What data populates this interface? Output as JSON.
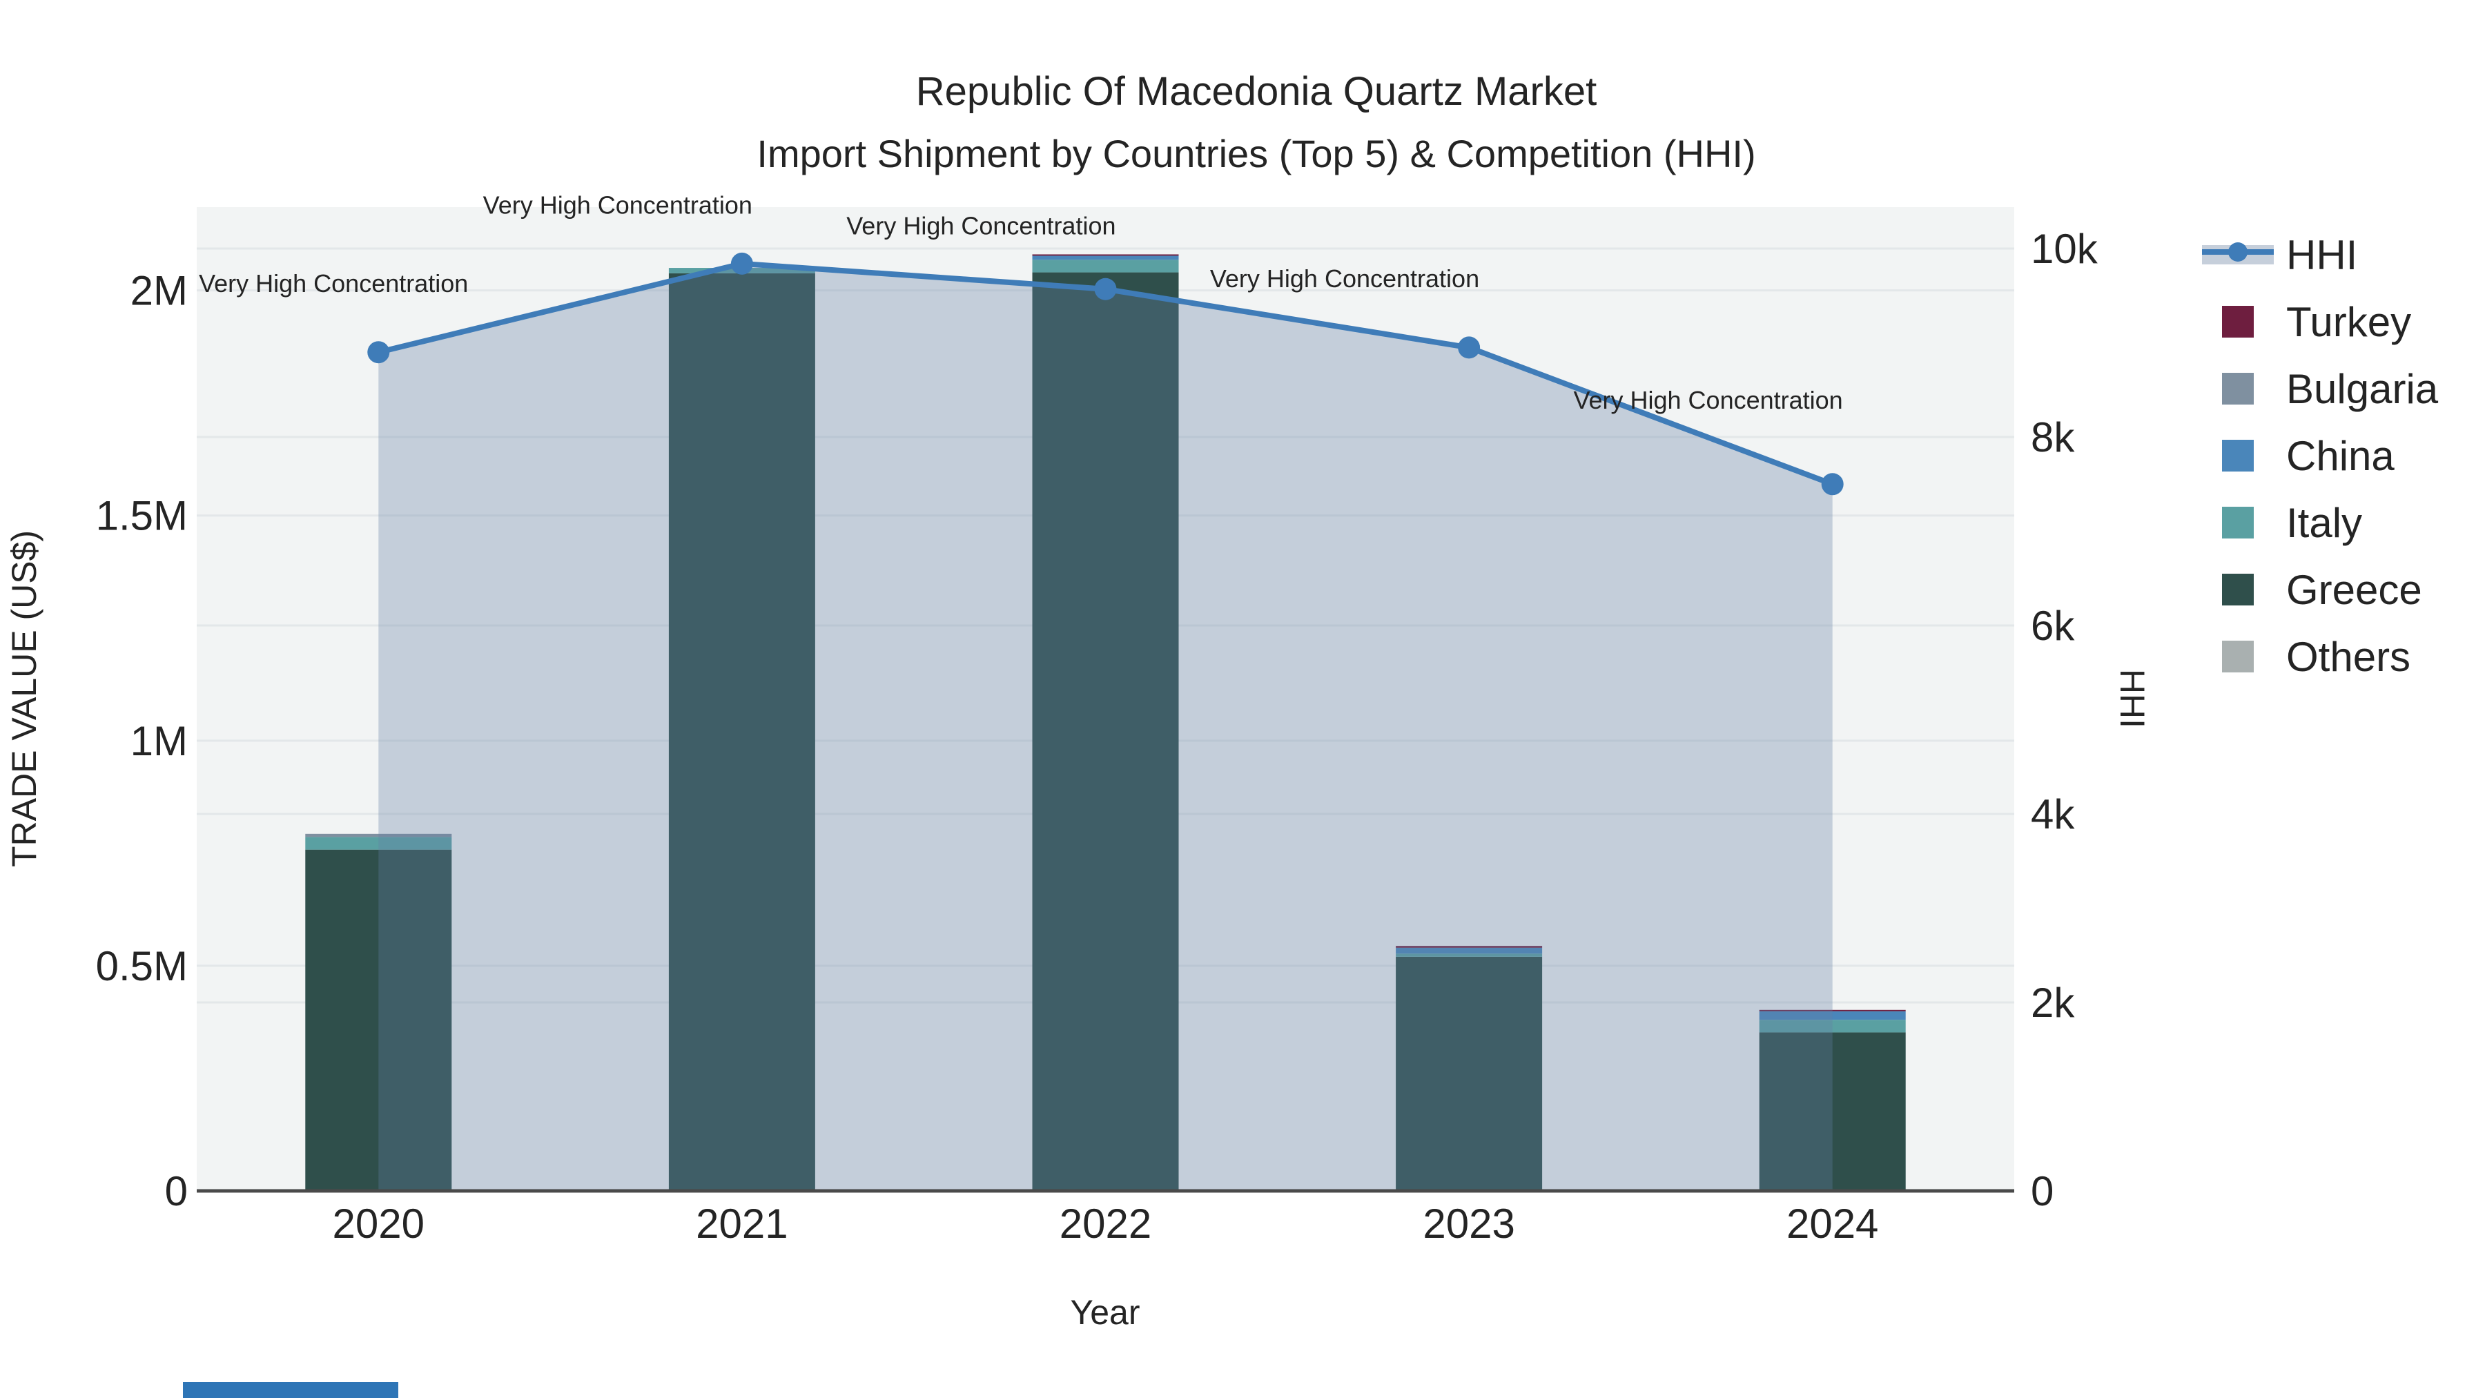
{
  "header": {
    "title": "Republic Of Macedonia Quartz Market",
    "subtitle": "Import Shipment by Countries (Top 5) & Competition (HHI)"
  },
  "colors": {
    "plot_background": "#f2f4f4",
    "gridline": "#e3e7e9",
    "axis_line": "#4a4a4a",
    "hhi_line": "#3f7cb8",
    "hhi_area_fill": "rgba(101,127,165,0.32)",
    "turkey": "#6e1e3f",
    "bulgaria": "#7f90a0",
    "china": "#4a86ba",
    "italy": "#5aa0a2",
    "greece": "#2f4f4b",
    "others": "#a9b0b0",
    "bottom_strip": "#2e75b6"
  },
  "chart_data": {
    "type": [
      "bar",
      "line"
    ],
    "title": "Republic Of Macedonia Quartz Market",
    "subtitle": "Import Shipment by Countries (Top 5) & Competition (HHI)",
    "categories": [
      "2020",
      "2021",
      "2022",
      "2023",
      "2024"
    ],
    "xlabel": "Year",
    "bar_axis": {
      "title": "TRADE VALUE (US$)",
      "side": "left",
      "tick_values": [
        0,
        500000,
        1000000,
        1500000,
        2000000
      ],
      "tick_labels": [
        "0",
        "0.5M",
        "1M",
        "1.5M",
        "2M"
      ],
      "range": [
        0,
        2185000
      ],
      "grid": true
    },
    "line_axis": {
      "title": "HHI",
      "side": "right",
      "tick_values": [
        0,
        2000,
        4000,
        6000,
        8000,
        10000
      ],
      "tick_labels": [
        "0",
        "2k",
        "4k",
        "6k",
        "8k",
        "10k"
      ],
      "range": [
        0,
        10440
      ],
      "grid": true
    },
    "series": [
      {
        "name": "Greece",
        "type": "bar",
        "color_key": "greece",
        "values": [
          758000,
          2038000,
          2040000,
          520000,
          352000
        ]
      },
      {
        "name": "Italy",
        "type": "bar",
        "color_key": "italy",
        "values": [
          28000,
          12000,
          28000,
          7000,
          28000
        ]
      },
      {
        "name": "China",
        "type": "bar",
        "color_key": "china",
        "values": [
          0,
          0,
          9000,
          13000,
          19000
        ]
      },
      {
        "name": "Bulgaria",
        "type": "bar",
        "color_key": "bulgaria",
        "values": [
          7000,
          0,
          0,
          0,
          0
        ]
      },
      {
        "name": "Turkey",
        "type": "bar",
        "color_key": "turkey",
        "values": [
          0,
          0,
          3000,
          4000,
          3000
        ]
      },
      {
        "name": "Others",
        "type": "bar",
        "color_key": "others",
        "values": [
          0,
          0,
          0,
          0,
          0
        ]
      }
    ],
    "hhi_series": {
      "name": "HHI",
      "type": "line",
      "color_key": "hhi_line",
      "values": [
        8900,
        9840,
        9570,
        8950,
        7500
      ],
      "point_annotation": "Very High Concentration",
      "area_fill": true
    },
    "legend": {
      "position": "right",
      "items": [
        {
          "label": "HHI",
          "swatch": "line-marker-band"
        },
        {
          "label": "Turkey",
          "swatch": "turkey"
        },
        {
          "label": "Bulgaria",
          "swatch": "bulgaria"
        },
        {
          "label": "China",
          "swatch": "china"
        },
        {
          "label": "Italy",
          "swatch": "italy"
        },
        {
          "label": "Greece",
          "swatch": "greece"
        },
        {
          "label": "Others",
          "swatch": "others"
        }
      ]
    }
  }
}
